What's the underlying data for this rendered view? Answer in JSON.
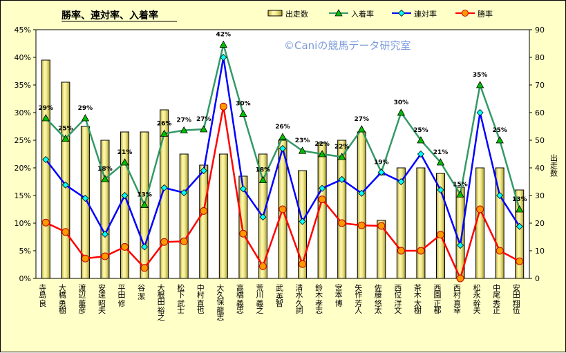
{
  "chart_data": {
    "type": "bar+line",
    "title": "勝率、連対率、入着率",
    "watermark": "©Caniの競馬データ研究室",
    "y2label": "出走数",
    "ylim": [
      0,
      45
    ],
    "yticks": [
      "0%",
      "5%",
      "10%",
      "15%",
      "20%",
      "25%",
      "30%",
      "35%",
      "40%",
      "45%"
    ],
    "y2lim": [
      0,
      90
    ],
    "y2ticks": [
      "0",
      "10",
      "20",
      "30",
      "40",
      "50",
      "60",
      "70",
      "80",
      "90"
    ],
    "categories": [
      "寺島 良",
      "大橋 勇樹",
      "渡辺 薫彦",
      "安達 昭夫",
      "平田 修",
      "谷 潔",
      "大根田 裕之",
      "松下 武士",
      "中村 直也",
      "大久保 龍志",
      "高橋 義忠",
      "荒川 義之",
      "武 英智",
      "清水 久詞",
      "鈴木 孝志",
      "宮本 博",
      "矢作 芳人",
      "佐藤 悠太",
      "西位 洋文",
      "茶木 太樹",
      "西園 正都",
      "西村 真幸",
      "松永 幹夫",
      "中尾 秀正",
      "安田 翔伍"
    ],
    "series": [
      {
        "name": "出走数",
        "type": "bar",
        "axis": "right",
        "color": "#f2ea8f",
        "values": [
          79,
          71,
          55,
          50,
          53,
          53,
          61,
          45,
          41,
          45,
          37,
          45,
          50,
          39,
          49,
          50,
          53,
          21,
          40,
          40,
          38,
          33,
          40,
          40,
          32
        ]
      },
      {
        "name": "入着率",
        "type": "line",
        "axis": "left",
        "color": "#339966",
        "marker": "#00c000",
        "values": [
          29,
          25.3,
          29,
          18,
          21,
          13.3,
          26.2,
          26.8,
          27,
          42.3,
          29.8,
          17.8,
          25.6,
          23.1,
          22.5,
          22,
          27,
          19.2,
          30,
          25,
          21,
          15.2,
          35,
          25,
          12.5
        ]
      },
      {
        "name": "連対率",
        "type": "line",
        "axis": "left",
        "color": "#0000ff",
        "marker": "#00ffff",
        "values": [
          21.5,
          16.9,
          14.5,
          8,
          15,
          5.7,
          16.4,
          15.5,
          19.5,
          40,
          16.2,
          11.1,
          23.5,
          10.3,
          16.3,
          17.9,
          15.4,
          19.2,
          17.5,
          22.5,
          16,
          6,
          30,
          15,
          9.4
        ]
      },
      {
        "name": "勝率",
        "type": "line",
        "axis": "left",
        "color": "#ff0000",
        "marker": "#ff9900",
        "values": [
          10.1,
          8.4,
          3.6,
          4,
          5.7,
          1.9,
          6.6,
          6.7,
          12.2,
          31.1,
          8.1,
          2.2,
          12.5,
          2.6,
          14.3,
          10,
          9.6,
          9.5,
          5,
          5,
          7.9,
          0,
          12.5,
          5,
          3.1
        ]
      }
    ],
    "data_labels": {
      "series": "入着率",
      "values": [
        "29%",
        "25%",
        "29%",
        "18%",
        "21%",
        "13%",
        "26%",
        "27%",
        "27%",
        "42%",
        "30%",
        "18%",
        "26%",
        "23%",
        "22%",
        "22%",
        "27%",
        "19%",
        "30%",
        "25%",
        "21%",
        "15%",
        "35%",
        "25%",
        "13%"
      ]
    },
    "legend": {
      "position": "top-right",
      "items": [
        "出走数",
        "入着率",
        "連対率",
        "勝率"
      ]
    },
    "grid": false
  }
}
